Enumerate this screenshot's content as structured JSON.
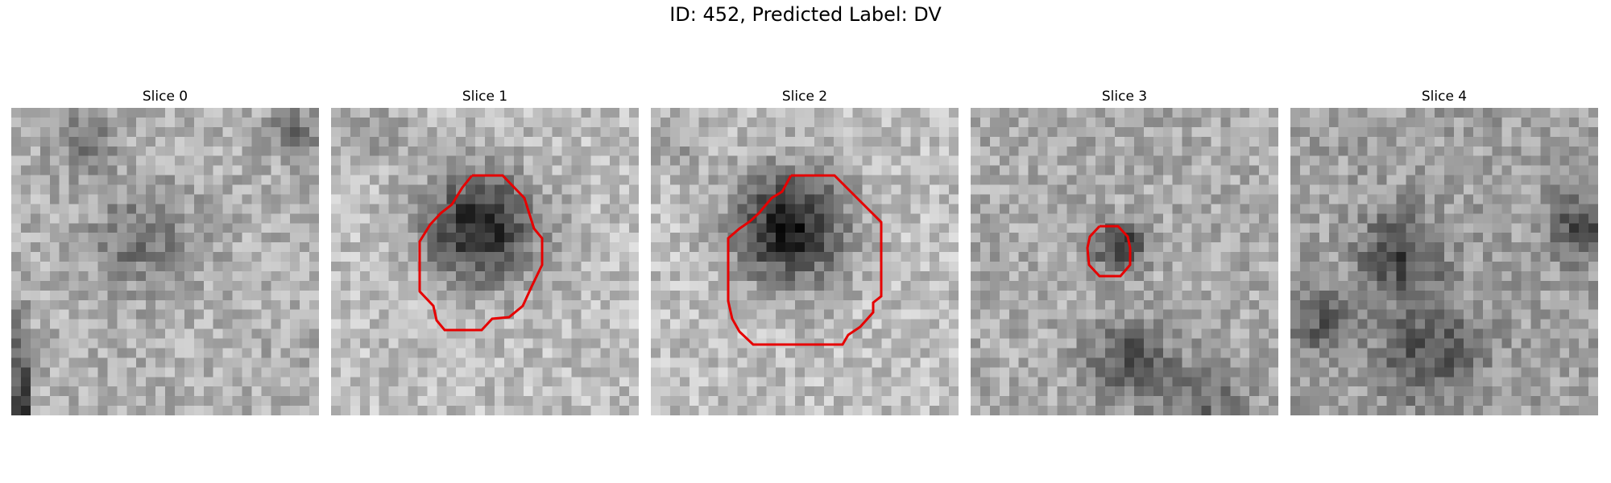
{
  "figure": {
    "title": "ID: 452, Predicted Label: DV"
  },
  "colors": {
    "background": "#ffffff",
    "contour": "#e60000",
    "colormap": "gray"
  },
  "slices": [
    {
      "title": "Slice 0",
      "has_contour": false
    },
    {
      "title": "Slice 1",
      "has_contour": true
    },
    {
      "title": "Slice 2",
      "has_contour": true
    },
    {
      "title": "Slice 3",
      "has_contour": true
    },
    {
      "title": "Slice 4",
      "has_contour": false
    }
  ]
}
